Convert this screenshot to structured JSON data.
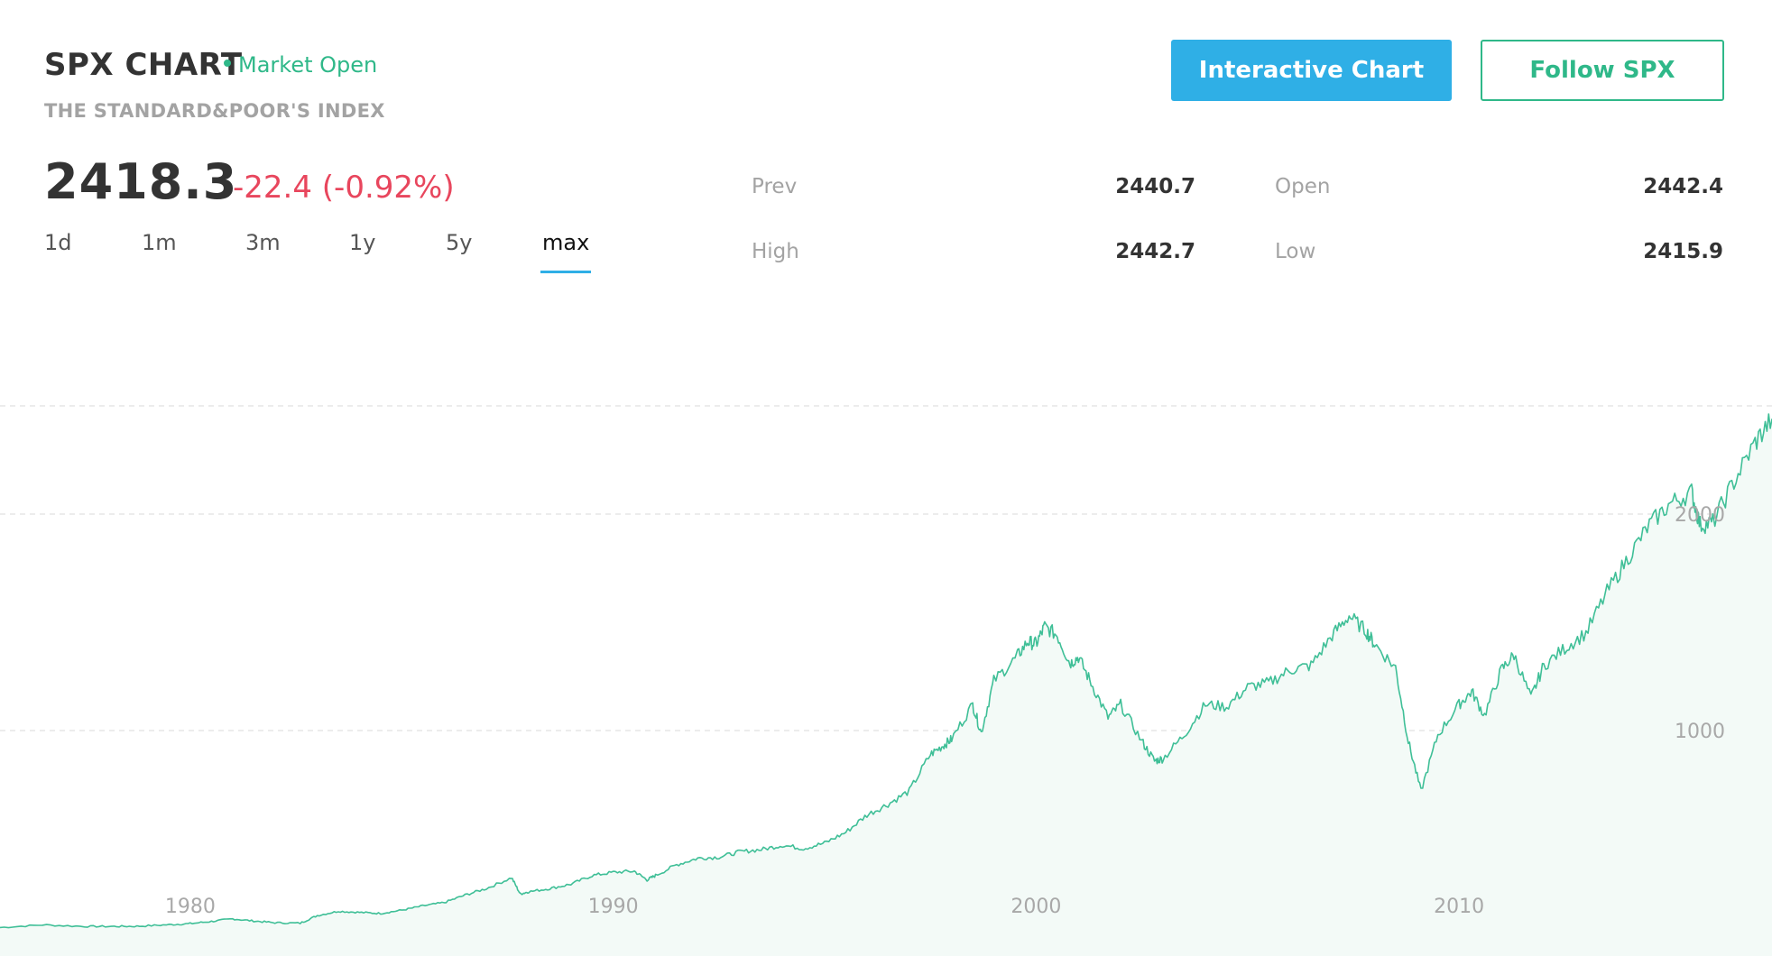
{
  "header": {
    "title": "SPX CHART",
    "status": "Market Open",
    "subtitle": "THE STANDARD&POOR'S INDEX"
  },
  "quote": {
    "price": "2418.3",
    "change": "-22.4 (-0.92%)"
  },
  "buttons": {
    "interactive_chart": "Interactive Chart",
    "follow": "Follow SPX"
  },
  "ranges": [
    {
      "label": "1d",
      "active": false
    },
    {
      "label": "1m",
      "active": false
    },
    {
      "label": "3m",
      "active": false
    },
    {
      "label": "1y",
      "active": false
    },
    {
      "label": "5y",
      "active": false
    },
    {
      "label": "max",
      "active": true
    }
  ],
  "stats": {
    "prev": {
      "label": "Prev",
      "value": "2440.7"
    },
    "open": {
      "label": "Open",
      "value": "2442.4"
    },
    "high": {
      "label": "High",
      "value": "2442.7"
    },
    "low": {
      "label": "Low",
      "value": "2415.9"
    }
  },
  "colors": {
    "accent_green": "#2fb889",
    "accent_blue": "#2fafe6",
    "negative_red": "#e8465d",
    "line": "#3fbf97",
    "area_fill": "#f3faf7"
  },
  "chart_data": {
    "type": "area",
    "x_ticks": [
      "1980",
      "1990",
      "2000",
      "2010"
    ],
    "y_ticks": [
      "1000",
      "2000"
    ],
    "ylim": [
      0,
      2500
    ],
    "xlim": [
      1975.5,
      2017.4
    ],
    "grid": true,
    "series": [
      {
        "x": [
          1975.5,
          1976.5,
          1977.5,
          1978.2,
          1978.8,
          1979.5,
          1980.0,
          1980.5,
          1981.0,
          1981.5,
          1982.0,
          1982.6,
          1983.0,
          1983.5,
          1984.0,
          1984.5,
          1985.0,
          1985.5,
          1986.0,
          1986.5,
          1987.0,
          1987.6,
          1987.8,
          1988.0,
          1988.5,
          1989.0,
          1989.5,
          1990.0,
          1990.5,
          1990.8,
          1991.0,
          1991.5,
          1992.0,
          1992.5,
          1993.0,
          1993.5,
          1994.0,
          1994.5,
          1995.0,
          1995.5,
          1996.0,
          1996.5,
          1997.0,
          1997.5,
          1997.8,
          1998.0,
          1998.5,
          1998.7,
          1999.0,
          1999.5,
          1999.8,
          2000.0,
          2000.2,
          2000.5,
          2000.8,
          2001.0,
          2001.3,
          2001.7,
          2002.0,
          2002.5,
          2002.8,
          2003.0,
          2003.5,
          2004.0,
          2004.5,
          2005.0,
          2005.5,
          2006.0,
          2006.5,
          2007.0,
          2007.4,
          2007.8,
          2008.0,
          2008.5,
          2008.8,
          2009.1,
          2009.5,
          2010.0,
          2010.3,
          2010.6,
          2011.0,
          2011.3,
          2011.7,
          2012.0,
          2012.5,
          2013.0,
          2013.5,
          2014.0,
          2014.5,
          2015.0,
          2015.5,
          2015.7,
          2016.0,
          2016.5,
          2017.0,
          2017.4
        ],
        "y": [
          90,
          102,
          95,
          95,
          96,
          103,
          108,
          118,
          130,
          120,
          112,
          110,
          145,
          165,
          160,
          155,
          170,
          190,
          205,
          240,
          270,
          320,
          245,
          255,
          270,
          290,
          330,
          345,
          350,
          310,
          330,
          380,
          410,
          415,
          440,
          450,
          470,
          455,
          480,
          530,
          610,
          660,
          720,
          890,
          930,
          960,
          1120,
          990,
          1230,
          1330,
          1410,
          1400,
          1480,
          1440,
          1310,
          1340,
          1220,
          1060,
          1120,
          950,
          860,
          870,
          980,
          1120,
          1110,
          1200,
          1220,
          1280,
          1300,
          1440,
          1530,
          1460,
          1400,
          1290,
          950,
          720,
          980,
          1120,
          1180,
          1070,
          1280,
          1350,
          1150,
          1300,
          1380,
          1450,
          1640,
          1800,
          1950,
          2050,
          2100,
          1950,
          1960,
          2150,
          2330,
          2440
        ]
      }
    ]
  }
}
